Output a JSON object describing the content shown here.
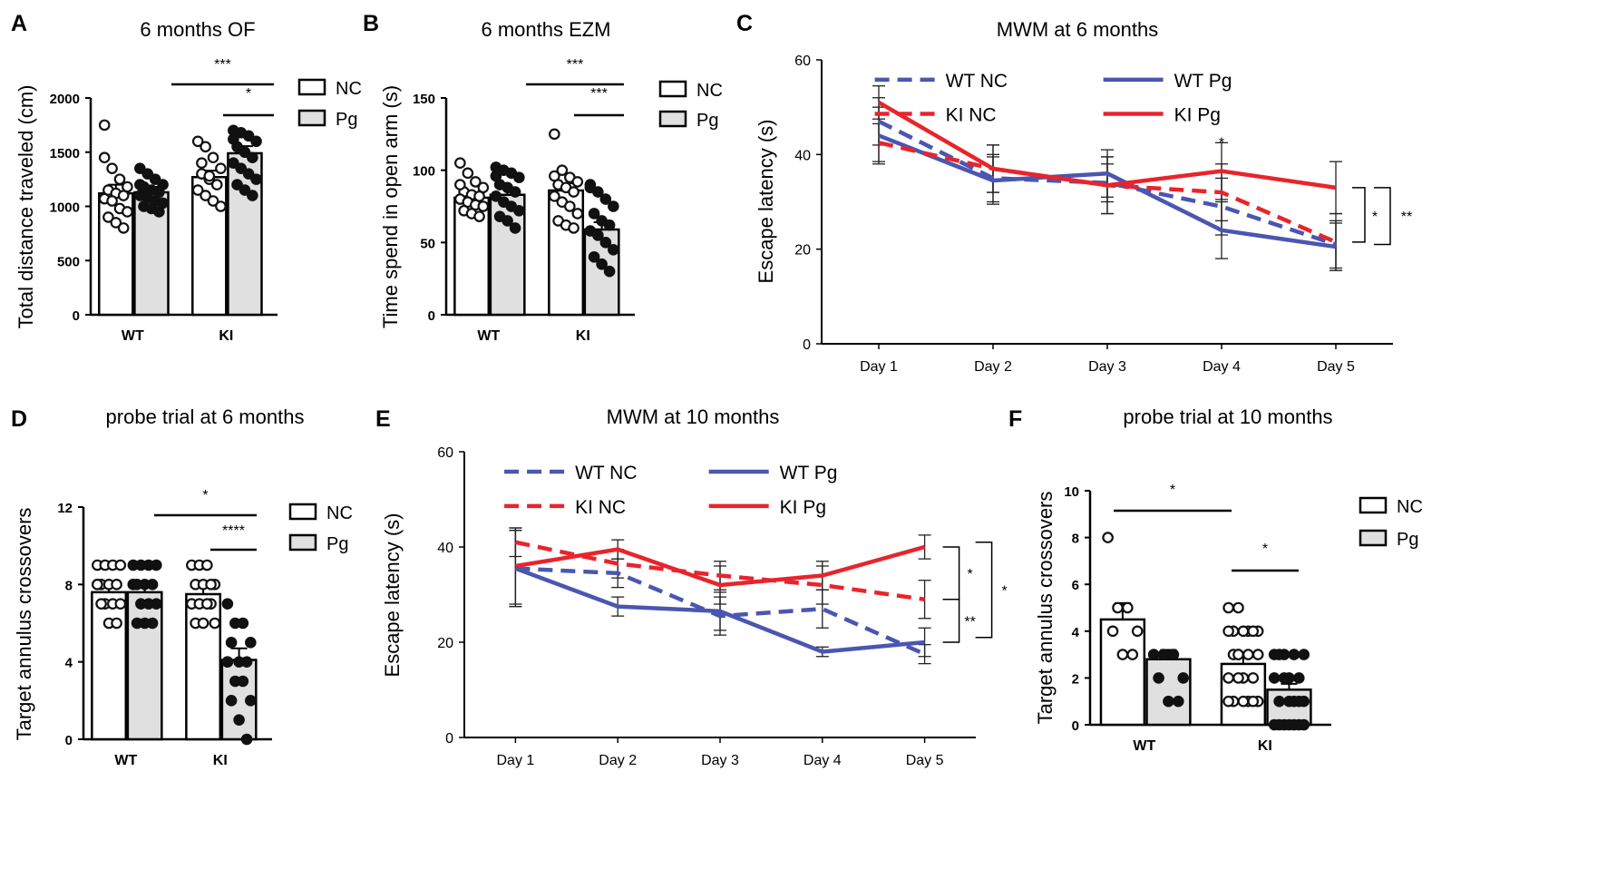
{
  "chart_data": [
    {
      "panel": "A",
      "type": "bar",
      "title": "6 months OF",
      "ylabel": "Total distance traveled (cm)",
      "xlabel": "",
      "ylim": [
        0,
        2000
      ],
      "yticks": [
        0,
        500,
        1000,
        1500,
        2000
      ],
      "categories": [
        "WT",
        "KI"
      ],
      "legend": [
        "NC",
        "Pg"
      ],
      "series": [
        {
          "name": "NC",
          "values": [
            1120,
            1270
          ],
          "errors": [
            80,
            60
          ]
        },
        {
          "name": "Pg",
          "values": [
            1130,
            1490
          ],
          "errors": [
            50,
            65
          ]
        }
      ],
      "points": [
        [
          1750,
          1350,
          1250,
          1180,
          1150,
          1120,
          1100,
          1070,
          1050,
          980,
          950,
          900,
          850,
          800,
          1450
        ],
        [
          1350,
          1300,
          1250,
          1200,
          1180,
          1150,
          1130,
          1100,
          1080,
          1050,
          1030,
          1000,
          980,
          950,
          1200
        ],
        [
          1600,
          1550,
          1450,
          1350,
          1300,
          1250,
          1200,
          1150,
          1100,
          1050,
          1000,
          1400,
          1280
        ],
        [
          1700,
          1680,
          1650,
          1600,
          1550,
          1500,
          1450,
          1400,
          1350,
          1300,
          1250,
          1200,
          1150,
          1100,
          1620
        ]
      ],
      "significance": [
        {
          "label": "***",
          "span": "WT Pg - KI Pg"
        },
        {
          "label": "*",
          "span": "KI NC - KI Pg"
        }
      ]
    },
    {
      "panel": "B",
      "type": "bar",
      "title": "6 months EZM",
      "ylabel": "Time spend in open arm (s)",
      "xlabel": "",
      "ylim": [
        0,
        150
      ],
      "yticks": [
        0,
        50,
        100,
        150
      ],
      "categories": [
        "WT",
        "KI"
      ],
      "legend": [
        "NC",
        "Pg"
      ],
      "series": [
        {
          "name": "NC",
          "values": [
            81,
            86
          ],
          "errors": [
            3,
            5
          ]
        },
        {
          "name": "Pg",
          "values": [
            83,
            59
          ],
          "errors": [
            5,
            5
          ]
        }
      ],
      "points": [
        [
          105,
          98,
          92,
          88,
          85,
          83,
          82,
          80,
          78,
          76,
          75,
          72,
          70,
          68,
          90
        ],
        [
          102,
          100,
          98,
          95,
          90,
          88,
          85,
          82,
          78,
          75,
          72,
          68,
          65,
          60,
          96
        ],
        [
          125,
          100,
          95,
          92,
          90,
          88,
          85,
          82,
          78,
          75,
          70,
          65,
          62,
          60,
          96
        ],
        [
          90,
          85,
          80,
          75,
          70,
          65,
          62,
          58,
          55,
          50,
          45,
          40,
          35,
          30,
          88
        ]
      ],
      "significance": [
        {
          "label": "***",
          "span": "WT Pg - KI Pg"
        },
        {
          "label": "***",
          "span": "KI NC - KI Pg"
        }
      ]
    },
    {
      "panel": "C",
      "type": "line",
      "title": "MWM at 6 months",
      "ylabel": "Escape latency (s)",
      "xlabel": "",
      "ylim": [
        0,
        60
      ],
      "yticks": [
        0,
        20,
        40,
        60
      ],
      "x": [
        "Day 1",
        "Day 2",
        "Day 3",
        "Day 4",
        "Day 5"
      ],
      "series": [
        {
          "name": "WT NC",
          "color": "#4a56b0",
          "dashed": true,
          "values": [
            47,
            35,
            34,
            29,
            21
          ],
          "errors": [
            5,
            5,
            4,
            6,
            5
          ]
        },
        {
          "name": "WT Pg",
          "color": "#4a56b0",
          "dashed": false,
          "values": [
            44,
            34.5,
            36,
            24,
            20.5
          ],
          "errors": [
            6,
            5,
            5,
            6,
            5
          ]
        },
        {
          "name": "KI NC",
          "color": "#e8242c",
          "dashed": true,
          "values": [
            42.5,
            37,
            33.5,
            32,
            21.5
          ],
          "errors": [
            4,
            5,
            6,
            6,
            6
          ]
        },
        {
          "name": "KI Pg",
          "color": "#e8242c",
          "dashed": false,
          "values": [
            51,
            37,
            33.5,
            36.5,
            33
          ],
          "errors": [
            3.5,
            5,
            6,
            6,
            5.5
          ]
        }
      ],
      "annotations": [
        "*",
        "*",
        "**"
      ]
    },
    {
      "panel": "D",
      "type": "bar",
      "title": "probe trial at 6 months",
      "ylabel": "Target annulus crossovers",
      "xlabel": "",
      "ylim": [
        0,
        12
      ],
      "yticks": [
        0,
        4,
        8,
        12
      ],
      "categories": [
        "WT",
        "KI"
      ],
      "legend": [
        "NC",
        "Pg"
      ],
      "series": [
        {
          "name": "NC",
          "values": [
            7.6,
            7.5
          ],
          "errors": [
            0.35,
            0.4
          ]
        },
        {
          "name": "Pg",
          "values": [
            7.6,
            4.1
          ],
          "errors": [
            0.35,
            0.6
          ]
        }
      ],
      "points": [
        [
          9,
          9,
          9,
          9,
          8,
          8,
          8,
          8,
          7,
          7,
          7,
          7,
          6,
          6,
          8
        ],
        [
          9,
          9,
          9,
          9,
          8,
          8,
          8,
          8,
          7,
          7,
          7,
          6,
          6,
          6,
          8
        ],
        [
          9,
          9,
          9,
          8,
          8,
          8,
          7,
          7,
          7,
          7,
          6,
          6,
          6,
          8
        ],
        [
          7,
          6,
          6,
          5,
          5,
          4,
          4,
          4,
          3,
          3,
          2,
          2,
          1,
          0,
          4
        ]
      ],
      "significance": [
        {
          "label": "*",
          "span": "WT Pg - KI Pg"
        },
        {
          "label": "****",
          "span": "KI NC - KI Pg"
        }
      ]
    },
    {
      "panel": "E",
      "type": "line",
      "title": "MWM at 10 months",
      "ylabel": "Escape latency (s)",
      "xlabel": "",
      "ylim": [
        0,
        60
      ],
      "yticks": [
        0,
        20,
        40,
        60
      ],
      "x": [
        "Day 1",
        "Day 2",
        "Day 3",
        "Day 4",
        "Day 5"
      ],
      "series": [
        {
          "name": "WT NC",
          "color": "#4a56b0",
          "dashed": true,
          "values": [
            35.5,
            34.5,
            25.5,
            27,
            17.5
          ],
          "errors": [
            8,
            3,
            4,
            4,
            2
          ]
        },
        {
          "name": "WT Pg",
          "color": "#4a56b0",
          "dashed": false,
          "values": [
            35.5,
            27.5,
            26.5,
            18,
            20
          ],
          "errors": [
            8,
            2,
            4,
            1,
            3
          ]
        },
        {
          "name": "KI NC",
          "color": "#e8242c",
          "dashed": true,
          "values": [
            41,
            36.5,
            34,
            32,
            29
          ],
          "errors": [
            3,
            3,
            3,
            4,
            4
          ]
        },
        {
          "name": "KI Pg",
          "color": "#e8242c",
          "dashed": false,
          "values": [
            36,
            39.5,
            32,
            34,
            40
          ],
          "errors": [
            8,
            2,
            4,
            3,
            2.5
          ]
        }
      ],
      "annotations": [
        "*",
        "**",
        "*"
      ]
    },
    {
      "panel": "F",
      "type": "bar",
      "title": "probe trial at 10 months",
      "ylabel": "Target annulus crossovers",
      "xlabel": "",
      "ylim": [
        0,
        10
      ],
      "yticks": [
        0,
        2,
        4,
        6,
        8,
        10
      ],
      "categories": [
        "WT",
        "KI"
      ],
      "legend": [
        "NC",
        "Pg"
      ],
      "series": [
        {
          "name": "NC",
          "values": [
            4.5,
            2.6
          ],
          "errors": [
            0.7,
            0.3
          ]
        },
        {
          "name": "Pg",
          "values": [
            2.8,
            1.5
          ],
          "errors": [
            0.4,
            0.25
          ]
        }
      ],
      "points": [
        [
          8,
          5,
          5,
          4,
          4,
          3,
          3
        ],
        [
          3,
          3,
          3,
          2,
          2,
          1,
          1
        ],
        [
          5,
          5,
          4,
          4,
          4,
          4,
          4,
          4,
          3,
          3,
          3,
          3,
          2,
          2,
          2,
          2,
          1,
          1,
          1,
          1,
          1,
          1,
          3
        ],
        [
          3,
          3,
          3,
          3,
          3,
          2,
          2,
          2,
          2,
          1,
          1,
          1,
          1,
          1,
          0,
          0,
          0,
          0,
          0,
          0,
          0
        ]
      ],
      "significance": [
        {
          "label": "*",
          "span": "WT NC - KI NC"
        },
        {
          "label": "*",
          "span": "KI NC - KI Pg"
        }
      ]
    }
  ]
}
